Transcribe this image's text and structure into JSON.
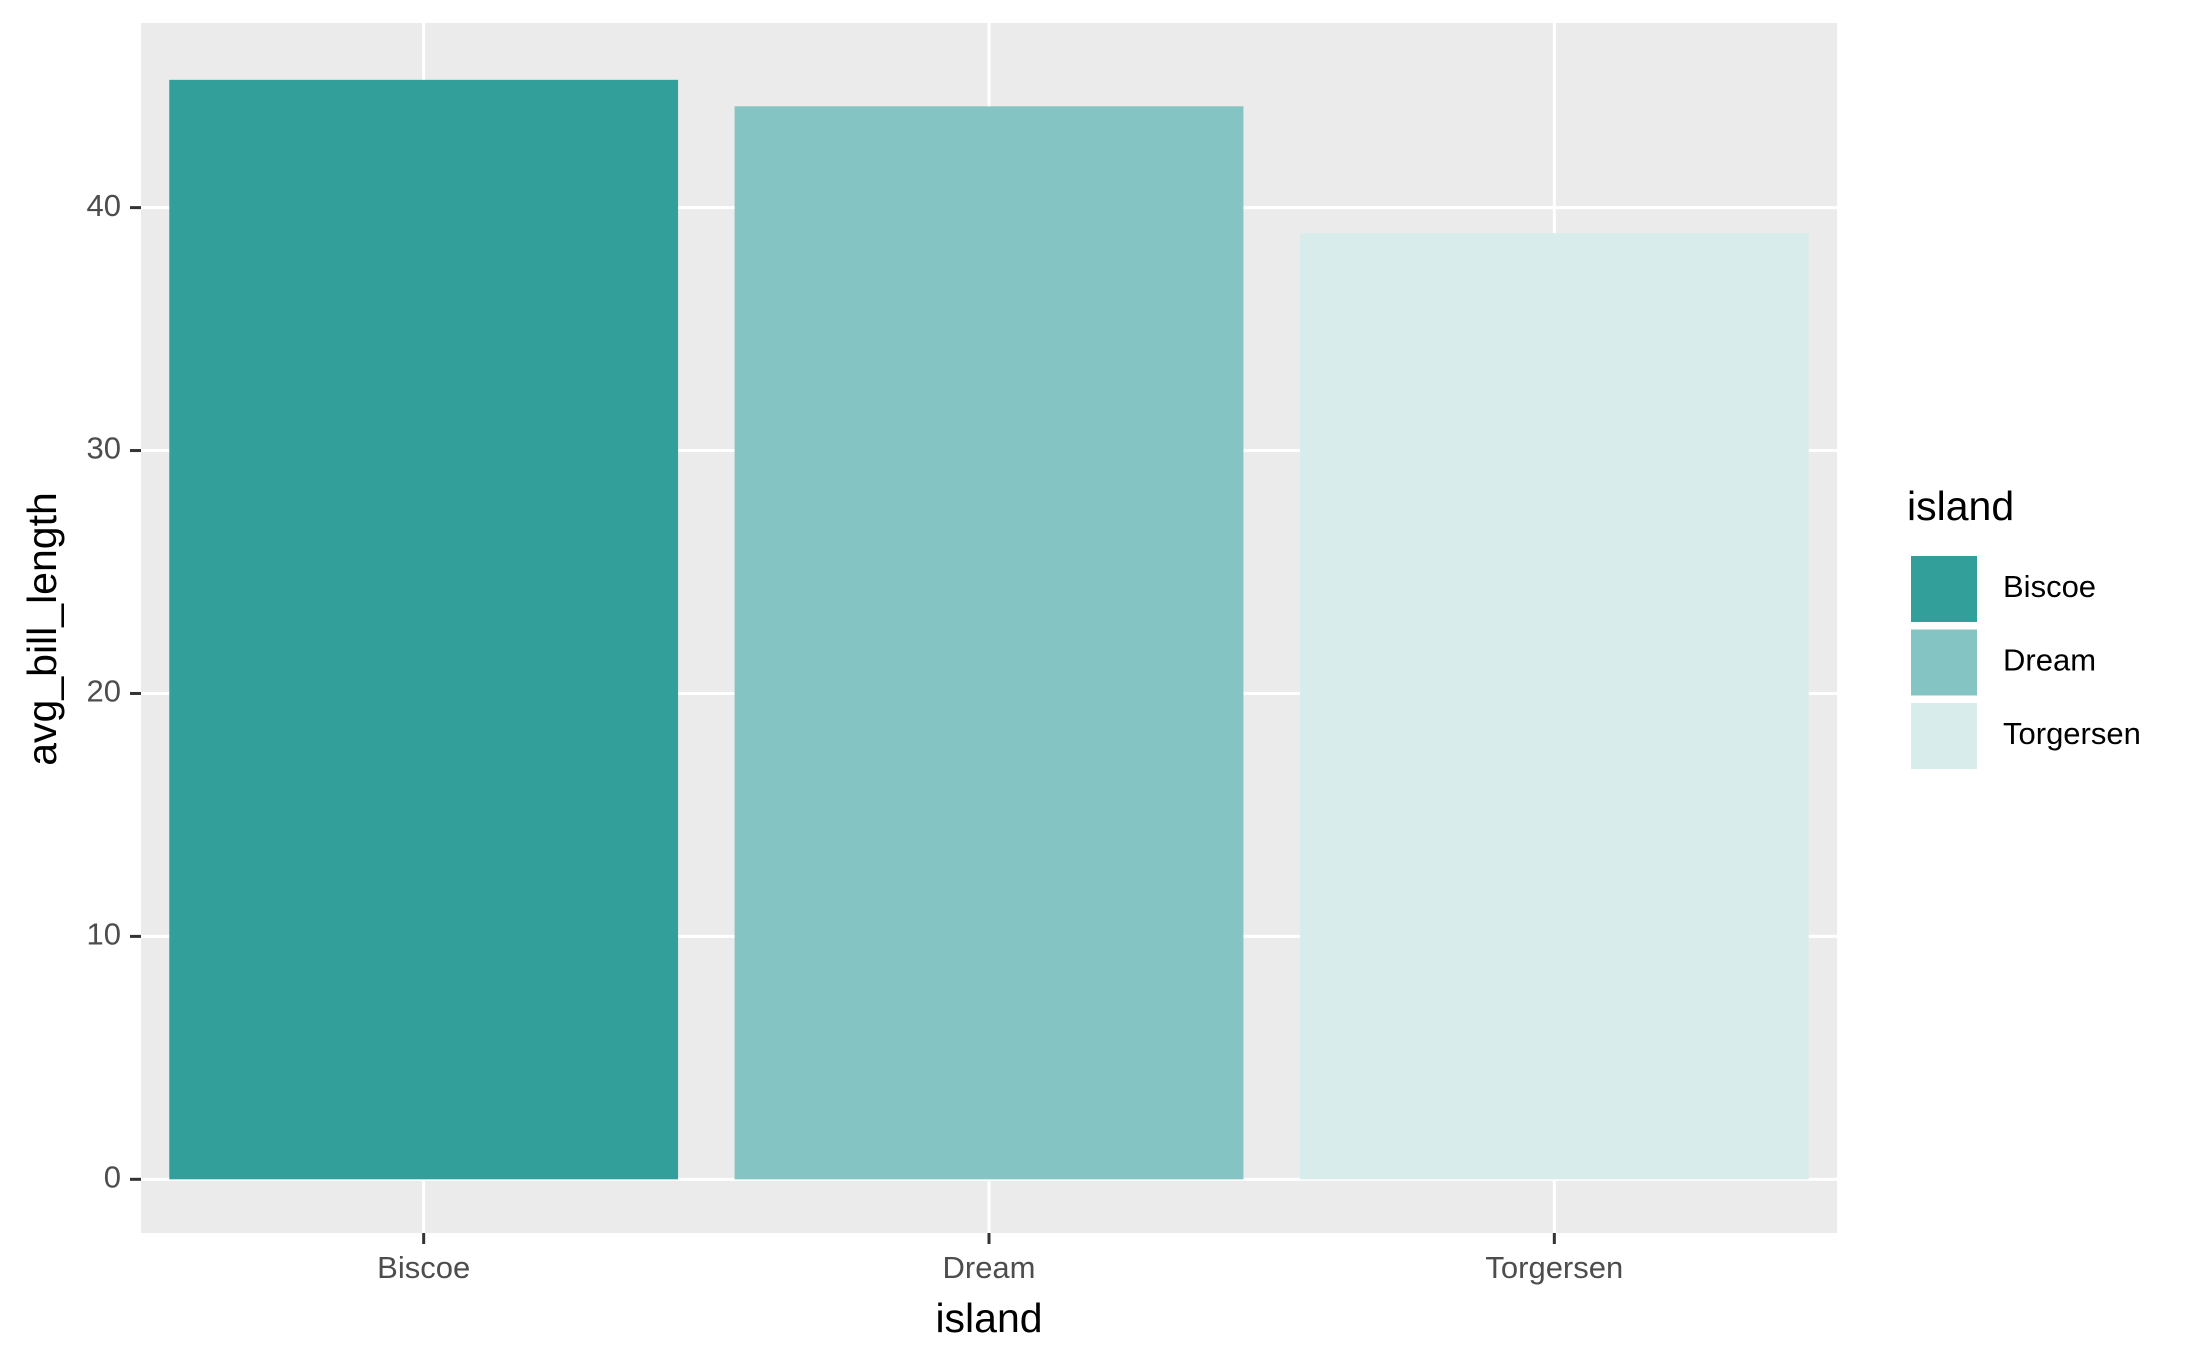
{
  "chart_data": {
    "type": "bar",
    "x_label": "island",
    "y_label": "avg_bill_length",
    "categories": [
      "Biscoe",
      "Dream",
      "Torgersen"
    ],
    "values": [
      45.26,
      44.17,
      38.95
    ],
    "colors": [
      "#329f9a",
      "#84c4c2",
      "#d8edeb"
    ],
    "ylim": [
      -2.21,
      47.6
    ],
    "yticks": [
      0,
      10,
      20,
      30,
      40
    ],
    "grid": true,
    "legend": {
      "title": "island",
      "position": "right"
    }
  }
}
